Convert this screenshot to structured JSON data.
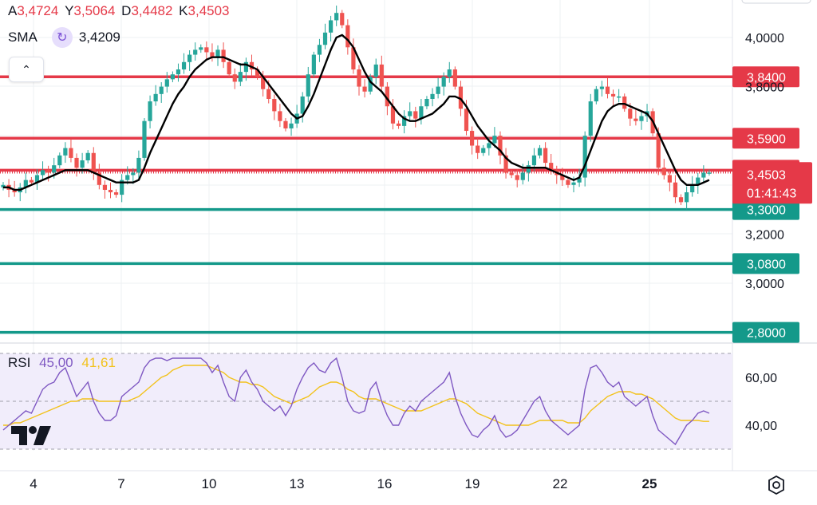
{
  "ohlc": {
    "a_label": "A",
    "a_value": "3,4724",
    "y_label": "Y",
    "y_value": "3,5064",
    "d_label": "D",
    "d_value": "3,4482",
    "k_label": "K",
    "k_value": "3,4503"
  },
  "sma": {
    "label": "SMA",
    "value": "3,4209",
    "icon": "refresh-icon"
  },
  "rsi": {
    "label": "RSI",
    "value": "45,00",
    "sma_value": "41,61"
  },
  "colors": {
    "up": "#26a69a",
    "down": "#ef5350",
    "resistance": "#e53948",
    "support": "#14998a",
    "sma": "#000000",
    "rsi": "#7e57c2",
    "rsi_ma": "#f2c21b"
  },
  "chart_data": [
    {
      "type": "candlestick",
      "x_ticks": [
        "4",
        "7",
        "10",
        "13",
        "16",
        "19",
        "22",
        "25"
      ],
      "y_ticks": [
        "4,0000",
        "3,8000",
        "3,2000",
        "3,0000"
      ],
      "ylim": [
        2.76,
        4.15
      ],
      "grid": true,
      "hlines": [
        {
          "value": 3.84,
          "label": "3,8400",
          "role": "resistance"
        },
        {
          "value": 3.59,
          "label": "3,5900",
          "role": "resistance"
        },
        {
          "value": 3.46,
          "label": "3,4600",
          "role": "resistance"
        },
        {
          "value": 3.3,
          "label": "3,3000",
          "role": "support"
        },
        {
          "value": 3.08,
          "label": "3,0800",
          "role": "support"
        },
        {
          "value": 2.8,
          "label": "2,8000",
          "role": "support"
        }
      ],
      "last_price": {
        "value": 3.4503,
        "label": "3,4503",
        "countdown": "01:41:43"
      },
      "close": [
        3.4,
        3.38,
        3.37,
        3.39,
        3.42,
        3.41,
        3.44,
        3.46,
        3.45,
        3.48,
        3.52,
        3.55,
        3.51,
        3.47,
        3.5,
        3.53,
        3.45,
        3.4,
        3.38,
        3.37,
        3.36,
        3.42,
        3.44,
        3.45,
        3.51,
        3.66,
        3.74,
        3.77,
        3.8,
        3.83,
        3.85,
        3.87,
        3.9,
        3.93,
        3.95,
        3.96,
        3.94,
        3.92,
        3.95,
        3.9,
        3.85,
        3.82,
        3.86,
        3.9,
        3.87,
        3.84,
        3.79,
        3.75,
        3.7,
        3.66,
        3.63,
        3.65,
        3.69,
        3.76,
        3.85,
        3.93,
        3.97,
        4.02,
        4.07,
        4.1,
        4.05,
        3.96,
        3.87,
        3.8,
        3.78,
        3.84,
        3.89,
        3.8,
        3.72,
        3.65,
        3.64,
        3.68,
        3.7,
        3.67,
        3.72,
        3.75,
        3.77,
        3.8,
        3.84,
        3.87,
        3.8,
        3.71,
        3.62,
        3.56,
        3.53,
        3.55,
        3.57,
        3.6,
        3.52,
        3.45,
        3.44,
        3.42,
        3.45,
        3.48,
        3.52,
        3.55,
        3.49,
        3.46,
        3.44,
        3.42,
        3.4,
        3.41,
        3.43,
        3.6,
        3.74,
        3.79,
        3.8,
        3.77,
        3.76,
        3.76,
        3.71,
        3.67,
        3.66,
        3.68,
        3.7,
        3.61,
        3.47,
        3.44,
        3.41,
        3.35,
        3.33,
        3.37,
        3.4,
        3.43,
        3.45,
        3.4503
      ],
      "sma": [
        3.39,
        3.39,
        3.38,
        3.38,
        3.39,
        3.4,
        3.41,
        3.42,
        3.43,
        3.44,
        3.45,
        3.46,
        3.46,
        3.46,
        3.46,
        3.46,
        3.45,
        3.44,
        3.43,
        3.42,
        3.41,
        3.41,
        3.41,
        3.41,
        3.42,
        3.47,
        3.53,
        3.58,
        3.63,
        3.68,
        3.73,
        3.77,
        3.8,
        3.84,
        3.87,
        3.89,
        3.91,
        3.92,
        3.92,
        3.92,
        3.91,
        3.9,
        3.89,
        3.89,
        3.88,
        3.87,
        3.84,
        3.81,
        3.78,
        3.75,
        3.72,
        3.69,
        3.67,
        3.68,
        3.72,
        3.77,
        3.83,
        3.89,
        3.95,
        4.0,
        4.01,
        3.99,
        3.96,
        3.91,
        3.86,
        3.82,
        3.8,
        3.78,
        3.75,
        3.72,
        3.69,
        3.67,
        3.66,
        3.66,
        3.67,
        3.68,
        3.69,
        3.71,
        3.73,
        3.76,
        3.76,
        3.75,
        3.72,
        3.68,
        3.64,
        3.61,
        3.58,
        3.56,
        3.54,
        3.51,
        3.49,
        3.48,
        3.47,
        3.47,
        3.47,
        3.47,
        3.47,
        3.46,
        3.45,
        3.44,
        3.43,
        3.42,
        3.43,
        3.48,
        3.54,
        3.6,
        3.66,
        3.7,
        3.72,
        3.73,
        3.73,
        3.72,
        3.71,
        3.7,
        3.69,
        3.66,
        3.61,
        3.56,
        3.51,
        3.46,
        3.42,
        3.4,
        3.4,
        3.4,
        3.41,
        3.42
      ],
      "rsi": {
        "label": "RSI",
        "value_label": "45,00",
        "ma_label": "41,61",
        "ylim": [
          28,
          72
        ],
        "y_ticks": [
          "60,00",
          "40,00"
        ],
        "bands": [
          70,
          50,
          30
        ],
        "rsi": [
          38,
          40,
          42,
          44,
          46,
          45,
          50,
          55,
          57,
          58,
          62,
          64,
          58,
          52,
          55,
          58,
          50,
          45,
          42,
          42,
          44,
          52,
          54,
          56,
          58,
          64,
          67,
          68,
          68,
          67,
          68,
          68,
          68,
          68,
          68,
          68,
          66,
          62,
          65,
          58,
          52,
          50,
          60,
          63,
          58,
          55,
          50,
          48,
          46,
          48,
          44,
          48,
          55,
          60,
          64,
          66,
          63,
          62,
          66,
          68,
          60,
          50,
          46,
          45,
          46,
          55,
          58,
          50,
          44,
          40,
          40,
          45,
          48,
          46,
          50,
          52,
          54,
          56,
          58,
          62,
          52,
          45,
          40,
          36,
          35,
          38,
          40,
          44,
          38,
          35,
          36,
          38,
          42,
          46,
          50,
          52,
          46,
          42,
          40,
          38,
          36,
          38,
          40,
          55,
          64,
          65,
          62,
          58,
          56,
          58,
          52,
          50,
          48,
          50,
          52,
          44,
          38,
          36,
          34,
          32,
          36,
          40,
          42,
          45,
          46,
          45
        ],
        "ma": [
          40,
          40,
          41,
          41,
          42,
          43,
          44,
          45,
          46,
          47,
          48,
          49,
          50,
          50,
          51,
          51,
          51,
          50,
          50,
          50,
          50,
          50,
          50,
          51,
          52,
          54,
          56,
          58,
          60,
          61,
          63,
          64,
          65,
          65,
          65,
          65,
          65,
          64,
          63,
          62,
          60,
          59,
          58,
          58,
          57,
          57,
          56,
          54,
          52,
          51,
          50,
          49,
          50,
          51,
          52,
          54,
          56,
          57,
          58,
          58,
          57,
          55,
          54,
          52,
          51,
          51,
          51,
          50,
          49,
          48,
          47,
          46,
          46,
          46,
          46,
          47,
          48,
          49,
          50,
          51,
          51,
          50,
          49,
          47,
          45,
          44,
          43,
          42,
          41,
          40,
          40,
          40,
          40,
          40,
          41,
          42,
          42,
          42,
          42,
          42,
          41,
          41,
          41,
          43,
          46,
          48,
          50,
          52,
          53,
          54,
          54,
          54,
          53,
          53,
          52,
          51,
          49,
          47,
          45,
          43,
          42,
          42,
          42,
          42,
          41.61,
          41.61
        ]
      }
    }
  ]
}
